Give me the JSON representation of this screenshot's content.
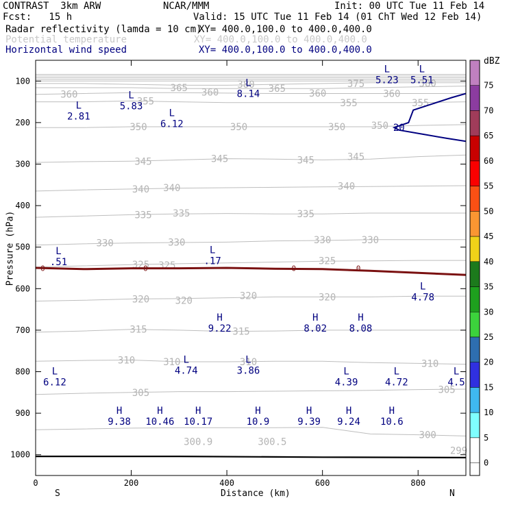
{
  "header": {
    "model": "CONTRAST  3km ARW",
    "org": "NCAR/MMM",
    "init": "Init: 00 UTC Tue 11 Feb 14",
    "fcst": "Fcst:   15 h",
    "valid": "Valid: 15 UTC Tue 11 Feb 14 (01 ChT Wed 12 Feb 14)",
    "fields": [
      {
        "name": "Radar reflectivity (lamda = 10 cm)",
        "xy": "XY= 400.0,100.0 to 400.0,400.0",
        "color": "#000000"
      },
      {
        "name": "Potential temperature",
        "xy": "XY= 400.0,100.0 to 400.0,400.0",
        "color": "#c8c8c8"
      },
      {
        "name": "Horizontal wind speed",
        "xy": "XY= 400.0,100.0 to 400.0,400.0",
        "color": "#000080"
      }
    ]
  },
  "chart_data": {
    "type": "cross-section",
    "xlabel": "Distance (km)",
    "ylabel": "Pressure (hPa)",
    "xlim": [
      0,
      900
    ],
    "ylim": [
      1050,
      50
    ],
    "xticks": [
      0,
      200,
      400,
      600,
      800
    ],
    "yticks": [
      100,
      200,
      300,
      400,
      500,
      600,
      700,
      800,
      900,
      1000
    ],
    "end_left": "S",
    "end_right": "N",
    "colorbar": {
      "unit": "dBZ",
      "levels": [
        0,
        5,
        10,
        15,
        20,
        25,
        30,
        35,
        40,
        45,
        50,
        55,
        60,
        65,
        70,
        75
      ],
      "colors": [
        "#ffffff",
        "#7fffff",
        "#3fb8f0",
        "#3030e0",
        "#2e6eb0",
        "#3cd23c",
        "#1ea01e",
        "#1c7a1c",
        "#f0d219",
        "#fa9632",
        "#fa5014",
        "#fa0000",
        "#c80000",
        "#a03c5a",
        "#8c3ca0",
        "#c080c0"
      ]
    },
    "theta_labels": [
      {
        "text": "380",
        "x": 440,
        "p": 108
      },
      {
        "text": "375",
        "x": 670,
        "p": 106
      },
      {
        "text": "380",
        "x": 820,
        "p": 105
      },
      {
        "text": "365",
        "x": 300,
        "p": 116
      },
      {
        "text": "365",
        "x": 505,
        "p": 118
      },
      {
        "text": "360",
        "x": 70,
        "p": 132
      },
      {
        "text": "360",
        "x": 365,
        "p": 127
      },
      {
        "text": "360",
        "x": 590,
        "p": 129
      },
      {
        "text": "360",
        "x": 745,
        "p": 130
      },
      {
        "text": "355",
        "x": 230,
        "p": 148
      },
      {
        "text": "355",
        "x": 655,
        "p": 152
      },
      {
        "text": "355",
        "x": 805,
        "p": 152
      },
      {
        "text": "350",
        "x": 215,
        "p": 210
      },
      {
        "text": "350",
        "x": 425,
        "p": 210
      },
      {
        "text": "350",
        "x": 630,
        "p": 210
      },
      {
        "text": "350",
        "x": 720,
        "p": 207
      },
      {
        "text": "345",
        "x": 225,
        "p": 293
      },
      {
        "text": "345",
        "x": 385,
        "p": 287
      },
      {
        "text": "345",
        "x": 565,
        "p": 290
      },
      {
        "text": "345",
        "x": 670,
        "p": 282
      },
      {
        "text": "340",
        "x": 220,
        "p": 360
      },
      {
        "text": "340",
        "x": 285,
        "p": 357
      },
      {
        "text": "340",
        "x": 650,
        "p": 353
      },
      {
        "text": "335",
        "x": 225,
        "p": 422
      },
      {
        "text": "335",
        "x": 305,
        "p": 418
      },
      {
        "text": "335",
        "x": 565,
        "p": 420
      },
      {
        "text": "330",
        "x": 145,
        "p": 490
      },
      {
        "text": "330",
        "x": 295,
        "p": 488
      },
      {
        "text": "330",
        "x": 600,
        "p": 482
      },
      {
        "text": "330",
        "x": 700,
        "p": 482
      },
      {
        "text": "325",
        "x": 220,
        "p": 542
      },
      {
        "text": "325",
        "x": 275,
        "p": 543
      },
      {
        "text": "325",
        "x": 610,
        "p": 533
      },
      {
        "text": "320",
        "x": 220,
        "p": 625
      },
      {
        "text": "320",
        "x": 310,
        "p": 628
      },
      {
        "text": "320",
        "x": 445,
        "p": 617
      },
      {
        "text": "320",
        "x": 610,
        "p": 620
      },
      {
        "text": "315",
        "x": 215,
        "p": 698
      },
      {
        "text": "315",
        "x": 430,
        "p": 703
      },
      {
        "text": "310",
        "x": 190,
        "p": 772
      },
      {
        "text": "310",
        "x": 285,
        "p": 776
      },
      {
        "text": "310",
        "x": 445,
        "p": 776
      },
      {
        "text": "310",
        "x": 825,
        "p": 780
      },
      {
        "text": "305",
        "x": 220,
        "p": 850
      },
      {
        "text": "305",
        "x": 860,
        "p": 843
      },
      {
        "text": "300",
        "x": 820,
        "p": 952
      },
      {
        "text": "300.9",
        "x": 340,
        "p": 968
      },
      {
        "text": "300.5",
        "x": 495,
        "p": 968
      },
      {
        "text": "299",
        "x": 885,
        "p": 990
      }
    ],
    "theta_lines": [
      {
        "p": [
          84,
          84,
          84,
          84,
          84,
          84,
          84,
          84,
          84,
          84
        ]
      },
      {
        "p": [
          88,
          88,
          88,
          88,
          88,
          88,
          88,
          88,
          88,
          88
        ]
      },
      {
        "p": [
          92,
          92,
          92,
          92,
          92,
          92,
          92,
          92,
          92,
          92
        ]
      },
      {
        "p": [
          96,
          96,
          96,
          96,
          96,
          96,
          96,
          96,
          96,
          96
        ]
      },
      {
        "p": [
          100,
          100,
          100,
          100,
          100,
          100,
          100,
          100,
          100,
          100
        ]
      },
      {
        "p": [
          106,
          106,
          108,
          110,
          110,
          108,
          106,
          104,
          104,
          104
        ]
      },
      {
        "p": [
          116,
          116,
          116,
          118,
          118,
          118,
          118,
          116,
          114,
          112
        ]
      },
      {
        "p": [
          132,
          130,
          128,
          128,
          129,
          130,
          130,
          130,
          130,
          130
        ]
      },
      {
        "p": [
          150,
          150,
          148,
          150,
          152,
          152,
          152,
          152,
          152,
          150
        ]
      },
      {
        "p": [
          212,
          212,
          210,
          210,
          210,
          210,
          210,
          210,
          207,
          205
        ]
      },
      {
        "p": [
          296,
          294,
          293,
          290,
          287,
          288,
          290,
          288,
          282,
          278
        ]
      },
      {
        "p": [
          365,
          362,
          360,
          358,
          357,
          356,
          355,
          354,
          353,
          352
        ]
      },
      {
        "p": [
          428,
          425,
          422,
          420,
          419,
          420,
          420,
          418,
          418,
          418
        ]
      },
      {
        "p": [
          495,
          492,
          490,
          489,
          488,
          485,
          484,
          482,
          482,
          482
        ]
      },
      {
        "p": [
          548,
          545,
          542,
          540,
          538,
          536,
          534,
          533,
          532,
          532
        ]
      },
      {
        "p": [
          630,
          628,
          625,
          624,
          622,
          620,
          620,
          620,
          618,
          618
        ]
      },
      {
        "p": [
          705,
          702,
          698,
          700,
          703,
          702,
          700,
          700,
          700,
          700
        ]
      },
      {
        "p": [
          775,
          773,
          772,
          776,
          776,
          775,
          775,
          778,
          780,
          782
        ]
      },
      {
        "p": [
          855,
          852,
          850,
          848,
          848,
          847,
          846,
          845,
          843,
          842
        ]
      },
      {
        "p": [
          940,
          938,
          936,
          935,
          935,
          935,
          934,
          950,
          952,
          955
        ]
      }
    ],
    "wind_labels": [
      {
        "sym": "L",
        "val": "2.81",
        "x": 90,
        "p": 170
      },
      {
        "sym": "L",
        "val": "5.83",
        "x": 200,
        "p": 145
      },
      {
        "sym": "L",
        "val": "6.12",
        "x": 285,
        "p": 188
      },
      {
        "sym": "L",
        "val": "8.14",
        "x": 445,
        "p": 115
      },
      {
        "sym": "L",
        "val": "5.23",
        "x": 735,
        "p": 82
      },
      {
        "sym": "L",
        "val": "5.51",
        "x": 808,
        "p": 82
      },
      {
        "sym": "L",
        "val": ".51",
        "x": 48,
        "p": 520
      },
      {
        "sym": "L",
        "val": ".17",
        "x": 370,
        "p": 518
      },
      {
        "sym": "L",
        "val": "4.78",
        "x": 810,
        "p": 605
      },
      {
        "sym": "H",
        "val": "9.22",
        "x": 385,
        "p": 680
      },
      {
        "sym": "H",
        "val": "8.02",
        "x": 585,
        "p": 680
      },
      {
        "sym": "H",
        "val": "8.08",
        "x": 680,
        "p": 680
      },
      {
        "sym": "L",
        "val": "4.74",
        "x": 315,
        "p": 782
      },
      {
        "sym": "L",
        "val": "3.86",
        "x": 445,
        "p": 782
      },
      {
        "sym": "L",
        "val": "6.12",
        "x": 40,
        "p": 810
      },
      {
        "sym": "L",
        "val": "4.39",
        "x": 650,
        "p": 810
      },
      {
        "sym": "L",
        "val": "4.72",
        "x": 755,
        "p": 810
      },
      {
        "sym": "L",
        "val": "4.5",
        "x": 880,
        "p": 810
      },
      {
        "sym": "H",
        "val": "9.38",
        "x": 175,
        "p": 905
      },
      {
        "sym": "H",
        "val": "10.46",
        "x": 260,
        "p": 905
      },
      {
        "sym": "H",
        "val": "10.17",
        "x": 340,
        "p": 905
      },
      {
        "sym": "H",
        "val": "10.9",
        "x": 465,
        "p": 905
      },
      {
        "sym": "H",
        "val": "9.39",
        "x": 572,
        "p": 905
      },
      {
        "sym": "H",
        "val": "9.24",
        "x": 655,
        "p": 905
      },
      {
        "sym": "H",
        "val": "10.6",
        "x": 745,
        "p": 905
      }
    ],
    "wind_contours": [
      {
        "value": "20",
        "label_x": 760,
        "label_p": 212,
        "points": [
          [
            900,
            130
          ],
          [
            870,
            140
          ],
          [
            830,
            155
          ],
          [
            790,
            170
          ],
          [
            780,
            200
          ],
          [
            750,
            212
          ],
          [
            760,
            218
          ],
          [
            810,
            228
          ],
          [
            860,
            238
          ],
          [
            900,
            245
          ]
        ]
      }
    ],
    "freezing_level": {
      "value": "0",
      "points": [
        [
          0,
          550
        ],
        [
          100,
          553
        ],
        [
          200,
          551
        ],
        [
          300,
          551
        ],
        [
          400,
          550
        ],
        [
          500,
          552
        ],
        [
          600,
          553
        ],
        [
          700,
          557
        ],
        [
          800,
          562
        ],
        [
          900,
          567
        ]
      ],
      "label_x": [
        15,
        230,
        540,
        675
      ]
    },
    "ground": {
      "points": [
        [
          0,
          1004
        ],
        [
          300,
          1004
        ],
        [
          600,
          1006
        ],
        [
          900,
          1007
        ]
      ]
    }
  }
}
